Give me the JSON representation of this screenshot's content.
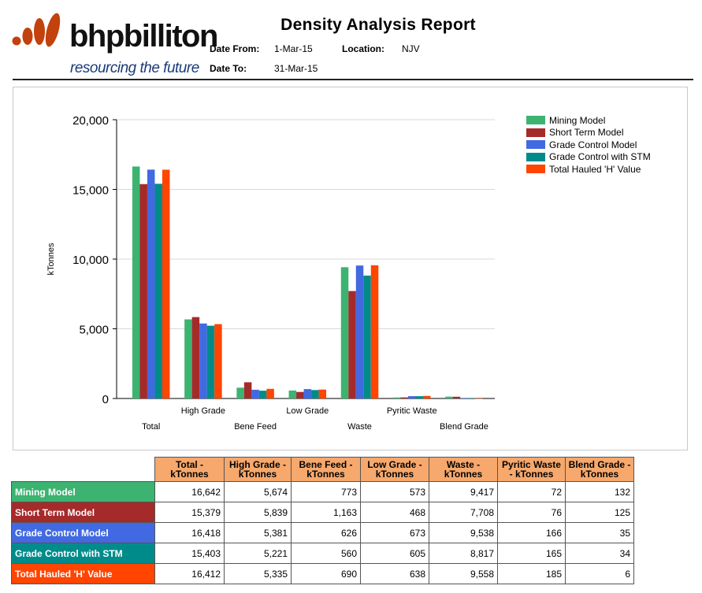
{
  "header": {
    "logo_word": "bhpbilliton",
    "logo_tagline": "resourcing the future",
    "title": "Density Analysis Report",
    "date_from_label": "Date From:",
    "date_from": "1-Mar-15",
    "location_label": "Location:",
    "location": "NJV",
    "date_to_label": "Date To:",
    "date_to": "31-Mar-15"
  },
  "colors": {
    "logo_accent": "#c2410c",
    "header_fill": "#f6a86d"
  },
  "chart_data": {
    "type": "bar",
    "categories": [
      "Total",
      "High Grade",
      "Bene Feed",
      "Low Grade",
      "Waste",
      "Pyritic Waste",
      "Blend Grade"
    ],
    "series": [
      {
        "name": "Mining Model",
        "color": "#3cb371",
        "values": [
          16642,
          5674,
          773,
          573,
          9417,
          72,
          132
        ]
      },
      {
        "name": "Short Term Model",
        "color": "#a52a2a",
        "values": [
          15379,
          5839,
          1163,
          468,
          7708,
          76,
          125
        ]
      },
      {
        "name": "Grade Control Model",
        "color": "#4169e1",
        "values": [
          16418,
          5381,
          626,
          673,
          9538,
          166,
          35
        ]
      },
      {
        "name": "Grade Control with STM",
        "color": "#008b8b",
        "values": [
          15403,
          5221,
          560,
          605,
          8817,
          165,
          34
        ]
      },
      {
        "name": "Total Hauled 'H' Value",
        "color": "#ff4500",
        "values": [
          16412,
          5335,
          690,
          638,
          9558,
          185,
          6
        ]
      }
    ],
    "ylabel": "kTonnes",
    "ylim": [
      0,
      20000
    ],
    "yticks": [
      "0",
      "5,000",
      "10,000",
      "15,000",
      "20,000"
    ],
    "grid": true,
    "legend": "top-right"
  },
  "table": {
    "columns": [
      [
        "Total -",
        "kTonnes"
      ],
      [
        "High Grade -",
        "kTonnes"
      ],
      [
        "Bene Feed -",
        "kTonnes"
      ],
      [
        "Low Grade -",
        "kTonnes"
      ],
      [
        "Waste -",
        "kTonnes"
      ],
      [
        "Pyritic Waste",
        "- kTonnes"
      ],
      [
        "Blend Grade -",
        "kTonnes"
      ]
    ],
    "rows": [
      {
        "label": "Mining Model",
        "color": "#3cb371",
        "cells": [
          "16,642",
          "5,674",
          "773",
          "573",
          "9,417",
          "72",
          "132"
        ]
      },
      {
        "label": "Short Term Model",
        "color": "#a52a2a",
        "cells": [
          "15,379",
          "5,839",
          "1,163",
          "468",
          "7,708",
          "76",
          "125"
        ]
      },
      {
        "label": "Grade Control Model",
        "color": "#4169e1",
        "cells": [
          "16,418",
          "5,381",
          "626",
          "673",
          "9,538",
          "166",
          "35"
        ]
      },
      {
        "label": "Grade Control with STM",
        "color": "#008b8b",
        "cells": [
          "15,403",
          "5,221",
          "560",
          "605",
          "8,817",
          "165",
          "34"
        ]
      },
      {
        "label": "Total Hauled 'H' Value",
        "color": "#ff4500",
        "cells": [
          "16,412",
          "5,335",
          "690",
          "638",
          "9,558",
          "185",
          "6"
        ]
      }
    ]
  }
}
